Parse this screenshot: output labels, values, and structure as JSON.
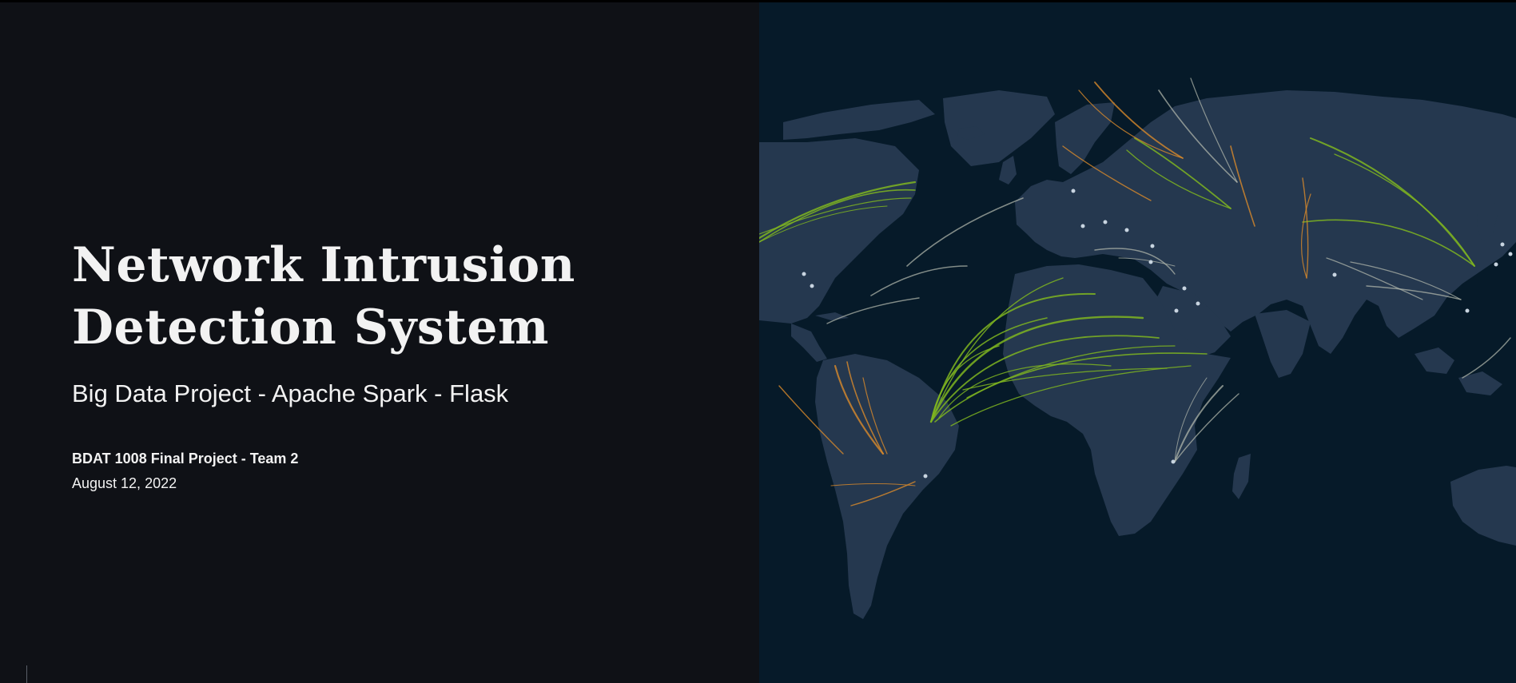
{
  "slide": {
    "title_line1": "Network Intrusion",
    "title_line2": "Detection System",
    "subtitle": "Big Data Project - Apache Spark - Flask",
    "team": "BDAT 1008 Final Project - Team 2",
    "date": "August 12, 2022"
  },
  "map": {
    "image": "world-map-attack-arcs",
    "colors": {
      "ocean": "#061a29",
      "land": "#25384f",
      "arc_green": "#7fb520",
      "arc_orange": "#d98a2b",
      "arc_gray": "#b8bdb0",
      "node": "#c8d4e0"
    }
  }
}
